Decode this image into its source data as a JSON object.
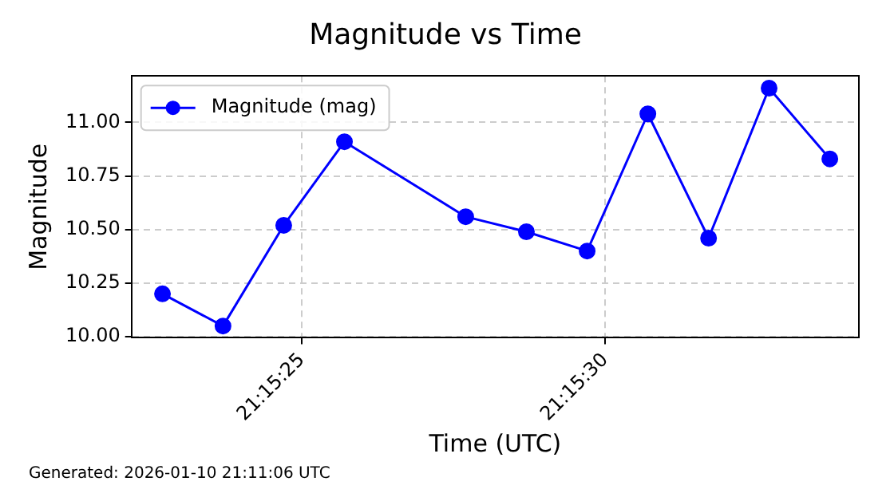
{
  "chart_data": {
    "type": "line",
    "title": "Magnitude vs Time",
    "xlabel": "Time (UTC)",
    "ylabel": "Magnitude",
    "x": [
      21.256306,
      21.256583,
      21.256861,
      21.257139,
      21.257694,
      21.257972,
      21.25825,
      21.258528,
      21.258806,
      21.259083,
      21.259361
    ],
    "series": [
      {
        "name": "Magnitude (mag)",
        "color": "#0000ff",
        "values": [
          10.2,
          10.05,
          10.52,
          10.91,
          10.56,
          10.49,
          10.4,
          11.04,
          10.46,
          11.16,
          10.83
        ]
      }
    ],
    "xlim": [
      21.256164,
      21.259494
    ],
    "xticks": [
      {
        "value": 21.256944,
        "label": "21:15:25"
      },
      {
        "value": 21.258333,
        "label": "21:15:30"
      }
    ],
    "ylim": [
      9.995,
      11.217
    ],
    "yticks": [
      {
        "value": 10,
        "label": "10.00"
      },
      {
        "value": 10.25,
        "label": "10.25"
      },
      {
        "value": 10.5,
        "label": "10.50"
      },
      {
        "value": 10.75,
        "label": "10.75"
      },
      {
        "value": 11,
        "label": "11.00"
      }
    ],
    "grid": true,
    "legend": "top left",
    "marker": "circle",
    "line_style": "solid",
    "annotations": [
      "Generated: 2026-01-10 21:11:06 UTC"
    ]
  }
}
